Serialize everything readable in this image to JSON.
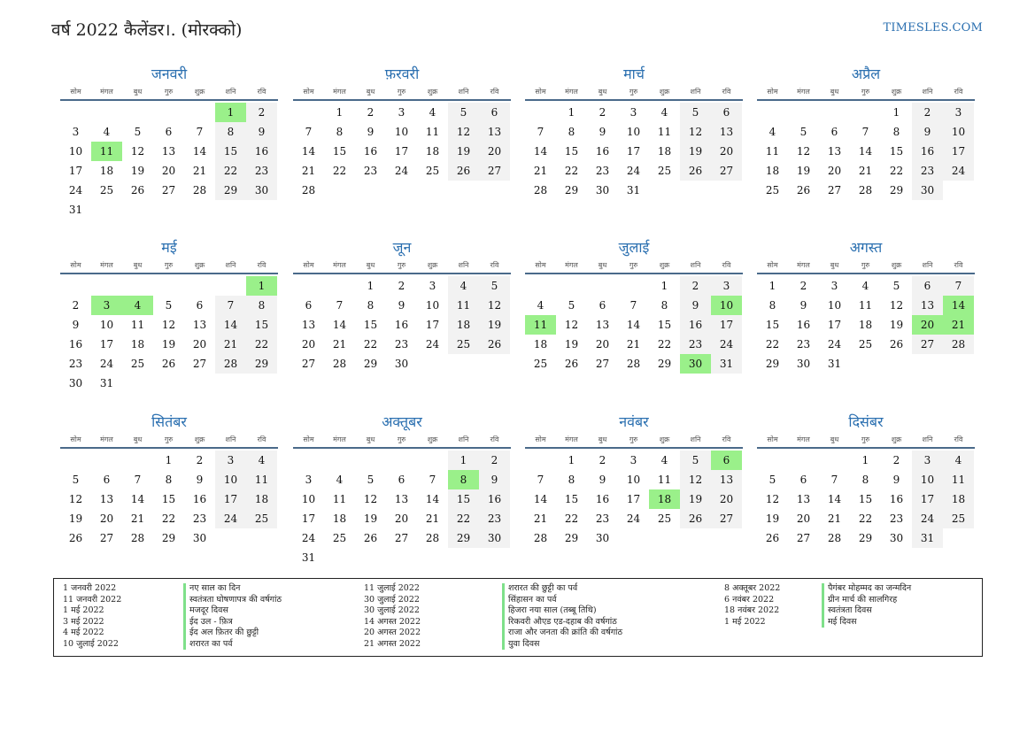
{
  "header": {
    "title": "वर्ष 2022 कैलेंडर।. (मोरक्को)",
    "site": "TIMESLES.COM"
  },
  "weekdays": [
    "सोम",
    "मंगल",
    "बुध",
    "गुरु",
    "शुक्र",
    "शनि",
    "रवि"
  ],
  "months": [
    {
      "name": "जनवरी",
      "offset": 5,
      "days": 31,
      "holidays": [
        1,
        11
      ]
    },
    {
      "name": "फ़रवरी",
      "offset": 1,
      "days": 28,
      "holidays": []
    },
    {
      "name": "मार्च",
      "offset": 1,
      "days": 31,
      "holidays": []
    },
    {
      "name": "अप्रैल",
      "offset": 4,
      "days": 30,
      "holidays": []
    },
    {
      "name": "मई",
      "offset": 6,
      "days": 31,
      "holidays": [
        1,
        3,
        4
      ]
    },
    {
      "name": "जून",
      "offset": 2,
      "days": 30,
      "holidays": []
    },
    {
      "name": "जुलाई",
      "offset": 4,
      "days": 31,
      "holidays": [
        10,
        11,
        30
      ]
    },
    {
      "name": "अगस्त",
      "offset": 0,
      "days": 31,
      "holidays": [
        14,
        20,
        21
      ]
    },
    {
      "name": "सितंबर",
      "offset": 3,
      "days": 30,
      "holidays": []
    },
    {
      "name": "अक्तूबर",
      "offset": 5,
      "days": 31,
      "holidays": [
        8
      ]
    },
    {
      "name": "नवंबर",
      "offset": 1,
      "days": 30,
      "holidays": [
        6,
        18
      ]
    },
    {
      "name": "दिसंबर",
      "offset": 3,
      "days": 31,
      "holidays": []
    }
  ],
  "legend": [
    [
      {
        "date": "1 जनवरी 2022",
        "name": "नए साल का दिन"
      },
      {
        "date": "11 जनवरी 2022",
        "name": "स्वतंत्रता घोषणापत्र की वर्षगांठ"
      },
      {
        "date": "1 मई 2022",
        "name": "मजदूर दिवस"
      },
      {
        "date": "3 मई 2022",
        "name": "ईद उल - फ़ित्र"
      },
      {
        "date": "4 मई 2022",
        "name": "ईद अल फ़ितर की छुट्टी"
      },
      {
        "date": "10 जुलाई 2022",
        "name": "शरारत का पर्व"
      }
    ],
    [
      {
        "date": "11 जुलाई 2022",
        "name": "शरारत की छुट्टी का पर्व"
      },
      {
        "date": "30 जुलाई 2022",
        "name": "सिंहासन का पर्व"
      },
      {
        "date": "30 जुलाई 2022",
        "name": "हिजरा नया साल (तब्बू तिथि)"
      },
      {
        "date": "14 अगस्त 2022",
        "name": "रिकवरी औएड एड-दहाब की वर्षगांठ"
      },
      {
        "date": "20 अगस्त 2022",
        "name": "राजा और जनता की क्रांति की वर्षगांठ"
      },
      {
        "date": "21 अगस्त 2022",
        "name": "युवा दिवस"
      }
    ],
    [
      {
        "date": "8 अक्तूबर 2022",
        "name": "पैगंबर मोहम्मद का जन्मदिन"
      },
      {
        "date": "6 नवंबर 2022",
        "name": "ग्रीन मार्च की सालगिरह"
      },
      {
        "date": "18 नवंबर 2022",
        "name": "स्वतंत्रता दिवस"
      },
      {
        "date": "1 मई 2022",
        "name": "मई दिवस"
      }
    ]
  ]
}
